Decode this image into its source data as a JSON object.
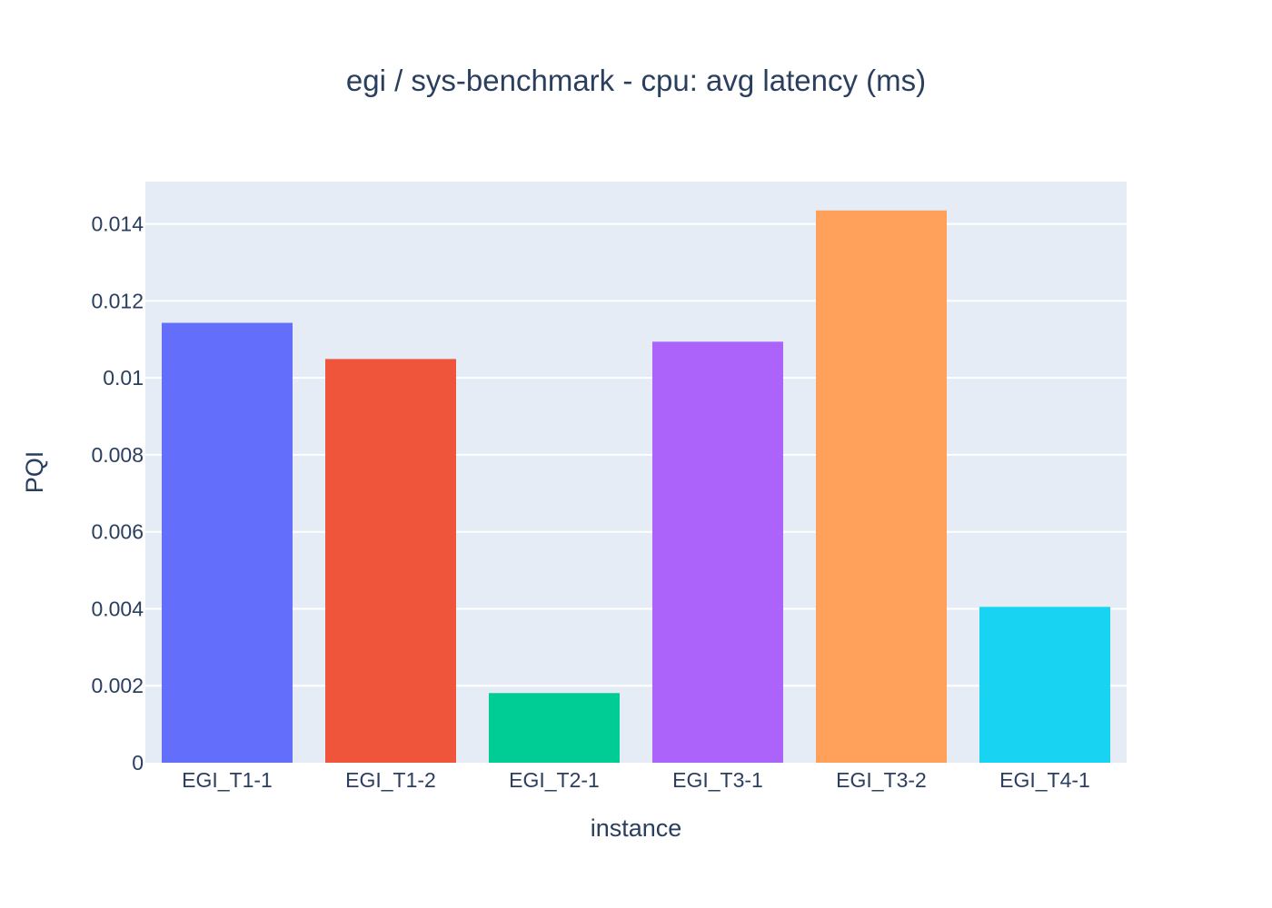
{
  "chart_data": {
    "type": "bar",
    "title": "egi / sys-benchmark - cpu: avg latency (ms)",
    "xlabel": "instance",
    "ylabel": "PQI",
    "categories": [
      "EGI_T1-1",
      "EGI_T1-2",
      "EGI_T2-1",
      "EGI_T3-1",
      "EGI_T3-2",
      "EGI_T4-1"
    ],
    "values": [
      0.01143,
      0.01049,
      0.00181,
      0.01094,
      0.01435,
      0.00405
    ],
    "colors": [
      "#636efa",
      "#ef553b",
      "#00cc96",
      "#ab63fa",
      "#ffa15a",
      "#19d3f3"
    ],
    "ylim": [
      0,
      0.0151
    ],
    "yticks": [
      0,
      0.002,
      0.004,
      0.006,
      0.008,
      0.01,
      0.012,
      0.014
    ],
    "ytick_labels": [
      "0",
      "0.002",
      "0.004",
      "0.006",
      "0.008",
      "0.01",
      "0.012",
      "0.014"
    ],
    "grid": true,
    "plot_background": "#e5ecf6",
    "legend": "none"
  }
}
